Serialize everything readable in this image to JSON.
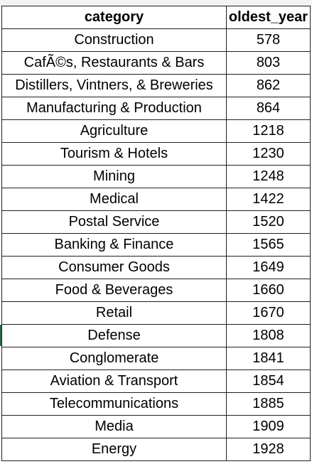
{
  "header": {
    "category": "category",
    "oldest_year": "oldest_year"
  },
  "rows": [
    {
      "category": "Construction",
      "oldest_year": "578"
    },
    {
      "category": "CafÃ©s, Restaurants & Bars",
      "oldest_year": "803"
    },
    {
      "category": "Distillers, Vintners, & Breweries",
      "oldest_year": "862"
    },
    {
      "category": "Manufacturing & Production",
      "oldest_year": "864"
    },
    {
      "category": "Agriculture",
      "oldest_year": "1218"
    },
    {
      "category": "Tourism & Hotels",
      "oldest_year": "1230"
    },
    {
      "category": "Mining",
      "oldest_year": "1248"
    },
    {
      "category": "Medical",
      "oldest_year": "1422"
    },
    {
      "category": "Postal Service",
      "oldest_year": "1520"
    },
    {
      "category": "Banking & Finance",
      "oldest_year": "1565"
    },
    {
      "category": "Consumer Goods",
      "oldest_year": "1649"
    },
    {
      "category": "Food & Beverages",
      "oldest_year": "1660"
    },
    {
      "category": "Retail",
      "oldest_year": "1670"
    },
    {
      "category": "Defense",
      "oldest_year": "1808"
    },
    {
      "category": "Conglomerate",
      "oldest_year": "1841"
    },
    {
      "category": "Aviation & Transport",
      "oldest_year": "1854"
    },
    {
      "category": "Telecommunications",
      "oldest_year": "1885"
    },
    {
      "category": "Media",
      "oldest_year": "1909"
    },
    {
      "category": "Energy",
      "oldest_year": "1928"
    }
  ]
}
